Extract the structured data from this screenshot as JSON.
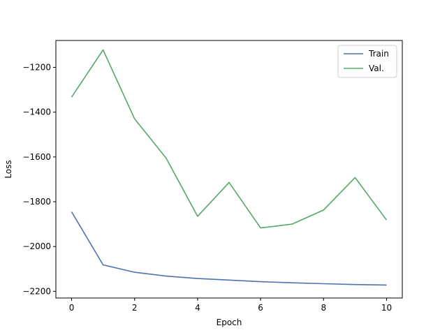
{
  "chart_data": {
    "type": "line",
    "xlabel": "Epoch",
    "ylabel": "Loss",
    "xlim": [
      -0.5,
      10.5
    ],
    "ylim": [
      -2230,
      -1080
    ],
    "xticks": [
      0,
      2,
      4,
      6,
      8,
      10
    ],
    "yticks": [
      -2200,
      -2000,
      -1800,
      -1600,
      -1400,
      -1200
    ],
    "grid": false,
    "legend_position": "top-right",
    "x": [
      0,
      1,
      2,
      3,
      4,
      5,
      6,
      7,
      8,
      9,
      10
    ],
    "series": [
      {
        "name": "Train",
        "color": "#4c72b0",
        "values": [
          -1845,
          -2082,
          -2115,
          -2132,
          -2143,
          -2150,
          -2157,
          -2162,
          -2166,
          -2170,
          -2172
        ]
      },
      {
        "name": "Val.",
        "color": "#55a868",
        "values": [
          -1333,
          -1122,
          -1430,
          -1605,
          -1865,
          -1714,
          -1917,
          -1900,
          -1837,
          -1692,
          -1882
        ]
      }
    ]
  }
}
